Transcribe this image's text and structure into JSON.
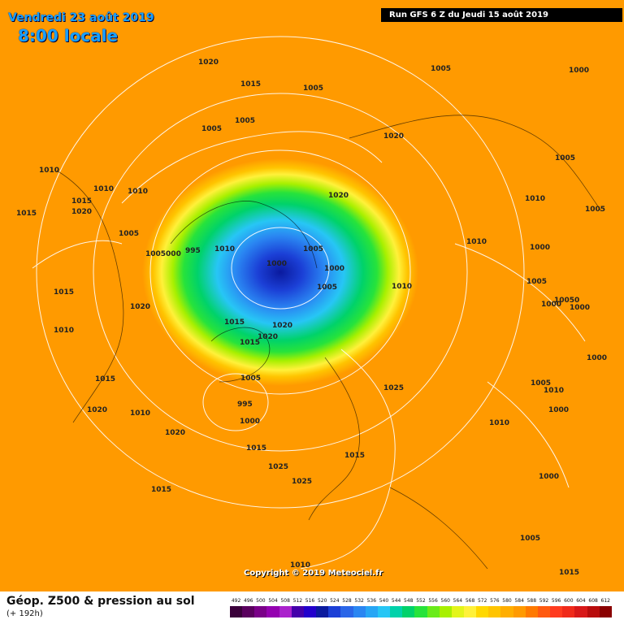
{
  "header": {
    "date_title": "Vendredi 23 août 2019",
    "time_title": "8:00 locale",
    "run_info": "Run GFS 6 Z du Jeudi 15 août 2019"
  },
  "copyright": "Copyright © 2019 Meteociel.fr",
  "legend": {
    "title": "Géop. Z500 & pression au sol",
    "subtitle": "(+ 192h)",
    "scale": [
      {
        "v": "492",
        "c": "#3a003a"
      },
      {
        "v": "496",
        "c": "#5a005e"
      },
      {
        "v": "500",
        "c": "#7a0088"
      },
      {
        "v": "504",
        "c": "#9400b0"
      },
      {
        "v": "508",
        "c": "#aa22cc"
      },
      {
        "v": "512",
        "c": "#4400aa"
      },
      {
        "v": "516",
        "c": "#2200cc"
      },
      {
        "v": "520",
        "c": "#0a1a9e"
      },
      {
        "v": "524",
        "c": "#1b3fd6"
      },
      {
        "v": "528",
        "c": "#2a66e8"
      },
      {
        "v": "532",
        "c": "#2a86f2"
      },
      {
        "v": "536",
        "c": "#27a6f5"
      },
      {
        "v": "540",
        "c": "#27c6f5"
      },
      {
        "v": "544",
        "c": "#00d2aa"
      },
      {
        "v": "548",
        "c": "#00d26a"
      },
      {
        "v": "552",
        "c": "#27e33b"
      },
      {
        "v": "556",
        "c": "#6aeb1a"
      },
      {
        "v": "560",
        "c": "#a8f000"
      },
      {
        "v": "564",
        "c": "#e3f51a"
      },
      {
        "v": "568",
        "c": "#fff13a"
      },
      {
        "v": "572",
        "c": "#ffd800"
      },
      {
        "v": "576",
        "c": "#ffc400"
      },
      {
        "v": "580",
        "c": "#ffae00"
      },
      {
        "v": "584",
        "c": "#ff9a00"
      },
      {
        "v": "588",
        "c": "#ff7a00"
      },
      {
        "v": "592",
        "c": "#ff5a10"
      },
      {
        "v": "596",
        "c": "#ff3b1f"
      },
      {
        "v": "600",
        "c": "#f02a1a"
      },
      {
        "v": "604",
        "c": "#d81818"
      },
      {
        "v": "608",
        "c": "#b80c0c"
      },
      {
        "v": "612",
        "c": "#8a0000"
      }
    ]
  },
  "isobars": [
    "1020",
    "1015",
    "1005",
    "1005",
    "1005",
    "1005",
    "1000",
    "1020",
    "1005",
    "1010",
    "1010",
    "1015",
    "1020",
    "1015",
    "1010",
    "1005",
    "1005000",
    "995",
    "1010",
    "1005",
    "1000",
    "1000",
    "1020",
    "1010",
    "1010",
    "1010",
    "1000",
    "1005",
    "1015",
    "1020",
    "1015",
    "1010",
    "1015",
    "1020",
    "1000",
    "1000",
    "10050",
    "1005",
    "1020",
    "1000",
    "1015",
    "1005",
    "1025",
    "1005",
    "1005",
    "1010",
    "995",
    "1010",
    "1000",
    "1000",
    "1020",
    "1010",
    "1015",
    "1015",
    "1025",
    "1025",
    "1000",
    "1020",
    "1015",
    "1005",
    "1010",
    "1015"
  ]
}
